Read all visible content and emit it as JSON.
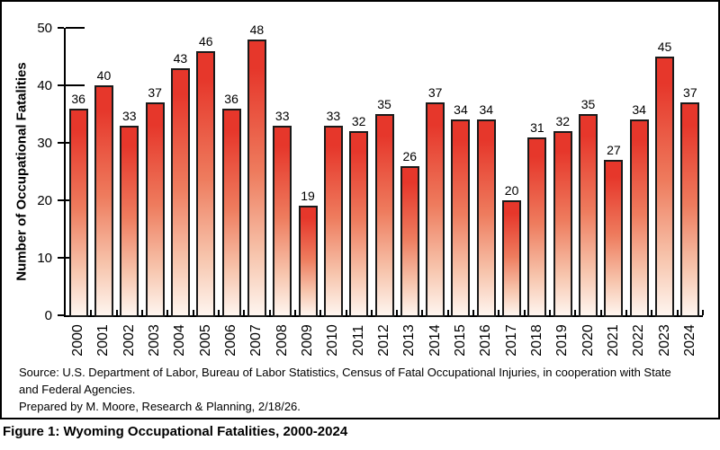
{
  "chart_data": {
    "type": "bar",
    "categories": [
      "2000",
      "2001",
      "2002",
      "2003",
      "2004",
      "2005",
      "2006",
      "2007",
      "2008",
      "2009",
      "2010",
      "2011",
      "2012",
      "2013",
      "2014",
      "2015",
      "2016",
      "2017",
      "2018",
      "2019",
      "2020",
      "2021",
      "2022",
      "2023",
      "2024"
    ],
    "values": [
      36,
      40,
      33,
      37,
      43,
      46,
      36,
      48,
      33,
      19,
      33,
      32,
      35,
      26,
      37,
      34,
      34,
      20,
      31,
      32,
      35,
      27,
      34,
      45,
      37
    ],
    "title": "Figure 1: Wyoming Occupational Fatalities, 2000-2024",
    "xlabel": "",
    "ylabel": "Number of Occupational Fatalities",
    "ylim": [
      0,
      50
    ],
    "yticks": [
      0,
      10,
      20,
      30,
      40,
      50
    ],
    "grid": false,
    "legend_position": "none",
    "bar_labels_shown": true,
    "colors": {
      "bar_top": "#e6372b",
      "bar_mid": "#ee7c5e",
      "bar_light": "#f7c5ad",
      "bar_bottom": "#fef5ef",
      "bar_border": "#1a1a1a",
      "axis": "#000000",
      "text": "#000000"
    }
  },
  "source": {
    "line1": "Source: U.S. Department of Labor, Bureau of Labor Statistics, Census of Fatal Occupational Injuries, in cooperation with State and Federal Agencies.",
    "line2": "Prepared by M. Moore, Research & Planning, 2/18/26."
  },
  "caption": "Figure 1: Wyoming Occupational Fatalities, 2000-2024"
}
